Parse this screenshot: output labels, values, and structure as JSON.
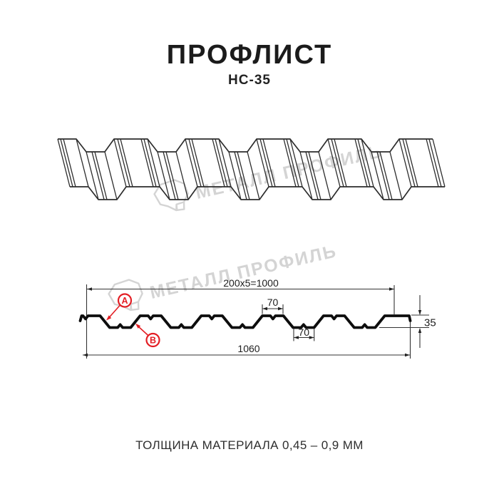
{
  "header": {
    "title": "ПРОФЛИСТ",
    "subtitle": "НС-35"
  },
  "watermark": {
    "brand": "МЕТАЛЛ ПРОФИЛЬ"
  },
  "section": {
    "dim_top_width": "200x5=1000",
    "dim_crest_width": "70",
    "dim_valley_width": "70",
    "dim_height": "35",
    "dim_overall_width": "1060",
    "label_a": "A",
    "label_b": "B"
  },
  "footer": {
    "thickness_note": "ТОЛЩИНА МАТЕРИАЛА 0,45 – 0,9 ММ"
  },
  "colors": {
    "accent_red": "#e31e24",
    "line_dark": "#2c2c2c",
    "watermark_gray": "#d4d4d4"
  }
}
